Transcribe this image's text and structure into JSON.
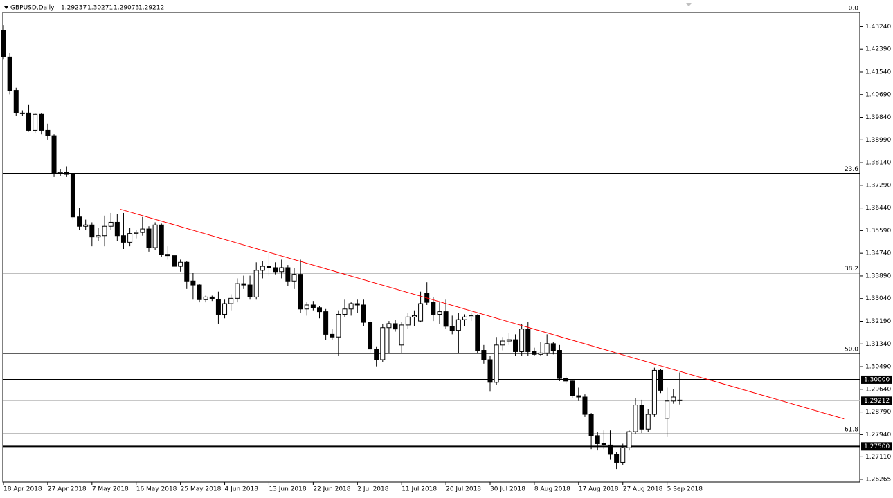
{
  "chart_data": {
    "type": "candlestick",
    "series": [
      {
        "name": "GBPUSD,Daily",
        "up_color": "#ffffff",
        "down_color": "#000000",
        "values": [
          [
            1.431,
            1.433,
            1.42,
            1.421
          ],
          [
            1.421,
            1.4225,
            1.407,
            1.4085
          ],
          [
            1.4085,
            1.4095,
            1.399,
            1.4
          ],
          [
            1.4,
            1.401,
            1.399,
            1.3998
          ],
          [
            1.4,
            1.403,
            1.393,
            1.3935
          ],
          [
            1.3935,
            1.4,
            1.3925,
            1.3995
          ],
          [
            1.3995,
            1.4,
            1.392,
            1.3935
          ],
          [
            1.3935,
            1.396,
            1.39,
            1.3915
          ],
          [
            1.3915,
            1.392,
            1.376,
            1.3775
          ],
          [
            1.3775,
            1.379,
            1.3765,
            1.3778
          ],
          [
            1.3778,
            1.38,
            1.376,
            1.377
          ],
          [
            1.377,
            1.3775,
            1.36,
            1.361
          ],
          [
            1.361,
            1.3645,
            1.356,
            1.3575
          ],
          [
            1.3575,
            1.36,
            1.356,
            1.358
          ],
          [
            1.358,
            1.359,
            1.35,
            1.3535
          ],
          [
            1.3535,
            1.357,
            1.352,
            1.354
          ],
          [
            1.354,
            1.3615,
            1.35,
            1.3575
          ],
          [
            1.3575,
            1.3625,
            1.356,
            1.359
          ],
          [
            1.359,
            1.362,
            1.352,
            1.354
          ],
          [
            1.354,
            1.3625,
            1.349,
            1.3515
          ],
          [
            1.3515,
            1.357,
            1.35,
            1.3548
          ],
          [
            1.3548,
            1.356,
            1.353,
            1.3552
          ],
          [
            1.3552,
            1.361,
            1.354,
            1.3565
          ],
          [
            1.3565,
            1.3575,
            1.348,
            1.3495
          ],
          [
            1.3495,
            1.359,
            1.3485,
            1.358
          ],
          [
            1.358,
            1.3585,
            1.346,
            1.347
          ],
          [
            1.347,
            1.35,
            1.345,
            1.3465
          ],
          [
            1.3465,
            1.348,
            1.34,
            1.3425
          ],
          [
            1.3425,
            1.345,
            1.3405,
            1.344
          ],
          [
            1.344,
            1.3445,
            1.334,
            1.337
          ],
          [
            1.337,
            1.34,
            1.33,
            1.3355
          ],
          [
            1.3355,
            1.336,
            1.329,
            1.33
          ],
          [
            1.33,
            1.3315,
            1.329,
            1.331
          ],
          [
            1.331,
            1.3315,
            1.3295,
            1.3302
          ],
          [
            1.3302,
            1.333,
            1.321,
            1.3245
          ],
          [
            1.3245,
            1.33,
            1.323,
            1.3285
          ],
          [
            1.3285,
            1.332,
            1.326,
            1.3305
          ],
          [
            1.3305,
            1.338,
            1.329,
            1.336
          ],
          [
            1.336,
            1.339,
            1.334,
            1.3355
          ],
          [
            1.3355,
            1.339,
            1.33,
            1.331
          ],
          [
            1.331,
            1.344,
            1.33,
            1.341
          ],
          [
            1.341,
            1.3445,
            1.338,
            1.3425
          ],
          [
            1.3425,
            1.3475,
            1.339,
            1.342
          ],
          [
            1.342,
            1.344,
            1.3395,
            1.3405
          ],
          [
            1.3405,
            1.345,
            1.338,
            1.342
          ],
          [
            1.342,
            1.343,
            1.335,
            1.337
          ],
          [
            1.337,
            1.342,
            1.334,
            1.3395
          ],
          [
            1.3395,
            1.345,
            1.325,
            1.3265
          ],
          [
            1.3265,
            1.329,
            1.324,
            1.328
          ],
          [
            1.328,
            1.3295,
            1.326,
            1.327
          ],
          [
            1.327,
            1.3275,
            1.323,
            1.3255
          ],
          [
            1.3255,
            1.3265,
            1.315,
            1.317
          ],
          [
            1.317,
            1.319,
            1.315,
            1.316
          ],
          [
            1.316,
            1.326,
            1.309,
            1.3245
          ],
          [
            1.3245,
            1.33,
            1.3235,
            1.3265
          ],
          [
            1.3265,
            1.329,
            1.324,
            1.3285
          ],
          [
            1.3285,
            1.33,
            1.325,
            1.328
          ],
          [
            1.328,
            1.33,
            1.32,
            1.3215
          ],
          [
            1.3215,
            1.3225,
            1.31,
            1.3115
          ],
          [
            1.3115,
            1.3125,
            1.305,
            1.3075
          ],
          [
            1.3075,
            1.321,
            1.3065,
            1.3195
          ],
          [
            1.3195,
            1.322,
            1.31,
            1.321
          ],
          [
            1.321,
            1.3225,
            1.318,
            1.319
          ],
          [
            1.313,
            1.3215,
            1.31,
            1.3205
          ],
          [
            1.3205,
            1.325,
            1.319,
            1.3235
          ],
          [
            1.3235,
            1.326,
            1.32,
            1.324
          ],
          [
            1.322,
            1.333,
            1.3215,
            1.3285
          ],
          [
            1.3325,
            1.3365,
            1.328,
            1.329
          ],
          [
            1.329,
            1.331,
            1.322,
            1.3245
          ],
          [
            1.3245,
            1.329,
            1.321,
            1.3255
          ],
          [
            1.3255,
            1.33,
            1.319,
            1.32
          ],
          [
            1.32,
            1.324,
            1.317,
            1.3185
          ],
          [
            1.3185,
            1.325,
            1.31,
            1.3225
          ],
          [
            1.3225,
            1.3245,
            1.32,
            1.3235
          ],
          [
            1.3235,
            1.325,
            1.322,
            1.324
          ],
          [
            1.324,
            1.3245,
            1.31,
            1.311
          ],
          [
            1.311,
            1.313,
            1.306,
            1.3075
          ],
          [
            1.3075,
            1.309,
            1.2955,
            1.299
          ],
          [
            1.299,
            1.316,
            1.298,
            1.313
          ],
          [
            1.313,
            1.316,
            1.311,
            1.3145
          ],
          [
            1.3145,
            1.3175,
            1.313,
            1.315
          ],
          [
            1.315,
            1.317,
            1.309,
            1.3105
          ],
          [
            1.3105,
            1.321,
            1.309,
            1.319
          ],
          [
            1.319,
            1.3215,
            1.309,
            1.3105
          ],
          [
            1.3105,
            1.312,
            1.309,
            1.3095
          ],
          [
            1.3095,
            1.314,
            1.309,
            1.31
          ],
          [
            1.31,
            1.317,
            1.309,
            1.3135
          ],
          [
            1.3135,
            1.314,
            1.3095,
            1.311
          ],
          [
            1.311,
            1.313,
            1.2995,
            1.3005
          ],
          [
            1.3005,
            1.3015,
            1.2985,
            1.2995
          ],
          [
            1.2995,
            1.3,
            1.293,
            1.294
          ],
          [
            1.294,
            1.297,
            1.292,
            1.2935
          ],
          [
            1.2935,
            1.2945,
            1.286,
            1.287
          ],
          [
            1.287,
            1.2875,
            1.274,
            1.279
          ],
          [
            1.279,
            1.2805,
            1.2735,
            1.276
          ],
          [
            1.276,
            1.281,
            1.274,
            1.2755
          ],
          [
            1.2755,
            1.281,
            1.27,
            1.272
          ],
          [
            1.272,
            1.273,
            1.2665,
            1.269
          ],
          [
            1.269,
            1.276,
            1.268,
            1.2745
          ],
          [
            1.2745,
            1.281,
            1.2735,
            1.2805
          ],
          [
            1.2805,
            1.293,
            1.2795,
            1.2905
          ],
          [
            1.2905,
            1.2925,
            1.28,
            1.2815
          ],
          [
            1.2815,
            1.289,
            1.2805,
            1.287
          ],
          [
            1.287,
            1.3045,
            1.286,
            1.3035
          ],
          [
            1.3035,
            1.304,
            1.295,
            1.296
          ],
          [
            1.2855,
            1.297,
            1.2785,
            1.292
          ],
          [
            1.292,
            1.2965,
            1.291,
            1.2935
          ],
          [
            1.29237,
            1.30271,
            1.29073,
            1.29212
          ]
        ]
      }
    ],
    "categories": [
      "18 Apr 2018",
      null,
      null,
      null,
      null,
      null,
      null,
      "27 Apr 2018",
      null,
      null,
      null,
      null,
      null,
      null,
      "7 May 2018",
      null,
      null,
      null,
      null,
      null,
      null,
      "16 May 2018",
      null,
      null,
      null,
      null,
      null,
      null,
      "25 May 2018",
      null,
      null,
      null,
      null,
      null,
      null,
      "4 Jun 2018",
      null,
      null,
      null,
      null,
      null,
      null,
      "13 Jun 2018",
      null,
      null,
      null,
      null,
      null,
      null,
      "22 Jun 2018",
      null,
      null,
      null,
      null,
      null,
      null,
      "2 Jul 2018",
      null,
      null,
      null,
      null,
      null,
      null,
      "11 Jul 2018",
      null,
      null,
      null,
      null,
      null,
      null,
      "20 Jul 2018",
      null,
      null,
      null,
      null,
      null,
      null,
      "30 Jul 2018",
      null,
      null,
      null,
      null,
      null,
      null,
      "8 Aug 2018",
      null,
      null,
      null,
      null,
      null,
      null,
      "17 Aug 2018",
      null,
      null,
      null,
      null,
      null,
      null,
      "27 Aug 2018",
      null,
      null,
      null,
      null,
      null,
      null,
      "5 Sep 2018",
      null,
      null
    ],
    "ylim": [
      1.2616,
      1.4377
    ],
    "yticks": [
      {
        "value": 1.4324,
        "label": "1.43240"
      },
      {
        "value": 1.4239,
        "label": "1.42390"
      },
      {
        "value": 1.4154,
        "label": "1.41540"
      },
      {
        "value": 1.4069,
        "label": "1.40690"
      },
      {
        "value": 1.3984,
        "label": "1.39840"
      },
      {
        "value": 1.3899,
        "label": "1.38990"
      },
      {
        "value": 1.3814,
        "label": "1.38140"
      },
      {
        "value": 1.3729,
        "label": "1.37290"
      },
      {
        "value": 1.3644,
        "label": "1.36440"
      },
      {
        "value": 1.3559,
        "label": "1.35590"
      },
      {
        "value": 1.3474,
        "label": "1.34740"
      },
      {
        "value": 1.3389,
        "label": "1.33890"
      },
      {
        "value": 1.3304,
        "label": "1.33040"
      },
      {
        "value": 1.3219,
        "label": "1.32190"
      },
      {
        "value": 1.3134,
        "label": "1.31340"
      },
      {
        "value": 1.3049,
        "label": "1.30490"
      },
      {
        "value": 1.2964,
        "label": "1.29640"
      },
      {
        "value": 1.2879,
        "label": "1.28790"
      },
      {
        "value": 1.2794,
        "label": "1.27940"
      },
      {
        "value": 1.2711,
        "label": "1.27110"
      },
      {
        "value": 1.26265,
        "label": "1.26265"
      }
    ],
    "fib_levels": [
      {
        "label": "0.0",
        "value": 1.4377
      },
      {
        "label": "23.6",
        "value": 1.3774
      },
      {
        "label": "38.2",
        "value": 1.34
      },
      {
        "label": "50.0",
        "value": 1.3098
      },
      {
        "label": "61.8",
        "value": 1.2797
      }
    ],
    "levels": [
      {
        "value": 1.3,
        "label": "1.30000",
        "color": "#000000"
      },
      {
        "value": 1.275,
        "label": "1.27500",
        "color": "#000000"
      }
    ],
    "price_line_color": "#c0c0c0",
    "trendline": {
      "color": "#ff0000",
      "x": [
        18.5,
        133
      ],
      "y": [
        1.3639,
        1.2853
      ]
    }
  }
}
